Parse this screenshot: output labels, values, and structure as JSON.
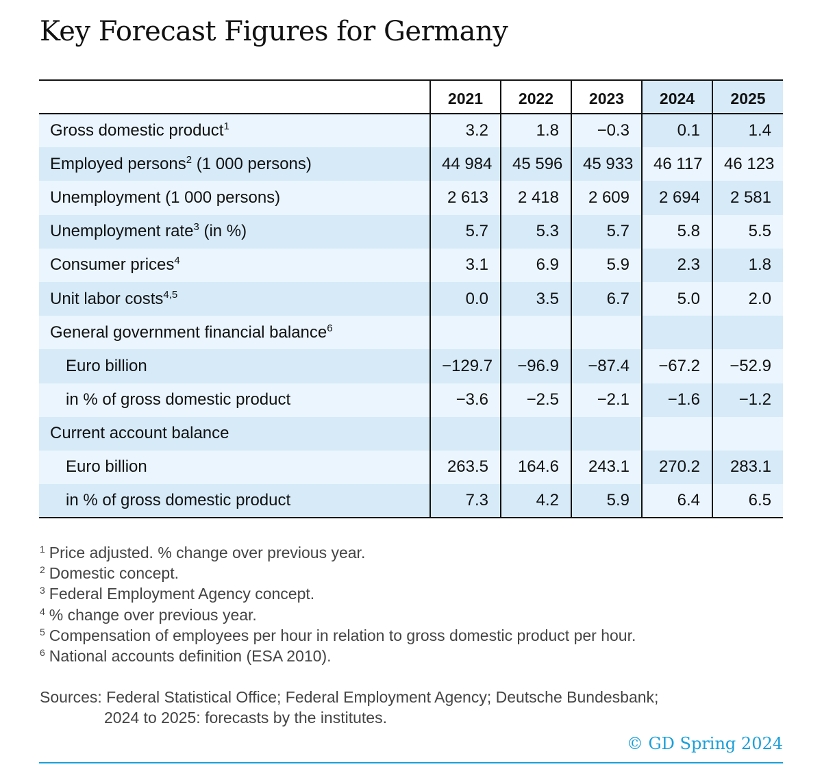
{
  "title": "Key Forecast Figures for Germany",
  "table": {
    "years": [
      "2021",
      "2022",
      "2023",
      "2024",
      "2025"
    ],
    "rows": [
      {
        "label": "Gross domestic product",
        "sup": "1",
        "values": [
          "3.2",
          "1.8",
          "−0.3",
          "0.1",
          "1.4"
        ]
      },
      {
        "label": "Employed persons",
        "sup": "2",
        "suffix": " (1 000 persons)",
        "values": [
          "44 984",
          "45 596",
          "45 933",
          "46 117",
          "46 123"
        ]
      },
      {
        "label": "Unemployment (1 000 persons)",
        "values": [
          "2 613",
          "2 418",
          "2 609",
          "2 694",
          "2 581"
        ]
      },
      {
        "label": "Unemployment rate",
        "sup": "3",
        "suffix": " (in %)",
        "values": [
          "5.7",
          "5.3",
          "5.7",
          "5.8",
          "5.5"
        ]
      },
      {
        "label": "Consumer prices",
        "sup": "4",
        "values": [
          "3.1",
          "6.9",
          "5.9",
          "2.3",
          "1.8"
        ]
      },
      {
        "label": "Unit labor costs",
        "sup": "4,5",
        "values": [
          "0.0",
          "3.5",
          "6.7",
          "5.0",
          "2.0"
        ]
      },
      {
        "label": "General government financial balance",
        "sup": "6",
        "values": [
          "",
          "",
          "",
          "",
          ""
        ]
      },
      {
        "label": "Euro billion",
        "indent": true,
        "values": [
          "−129.7",
          "−96.9",
          "−87.4",
          "−67.2",
          "−52.9"
        ]
      },
      {
        "label": "in % of gross domestic product",
        "indent": true,
        "values": [
          "−3.6",
          "−2.5",
          "−2.1",
          "−1.6",
          "−1.2"
        ]
      },
      {
        "label": "Current account balance",
        "values": [
          "",
          "",
          "",
          "",
          ""
        ]
      },
      {
        "label": "Euro billion",
        "indent": true,
        "values": [
          "263.5",
          "164.6",
          "243.1",
          "270.2",
          "283.1"
        ]
      },
      {
        "label": "in % of gross domestic product",
        "indent": true,
        "values": [
          "7.3",
          "4.2",
          "5.9",
          "6.4",
          "6.5"
        ]
      }
    ]
  },
  "footnotes": [
    {
      "num": "1",
      "text": "Price adjusted. % change over previous year."
    },
    {
      "num": "2",
      "text": "Domestic concept."
    },
    {
      "num": "3",
      "text": "Federal Employment Agency concept."
    },
    {
      "num": "4",
      "text": "% change over previous year."
    },
    {
      "num": "5",
      "text": "Compensation of employees per hour in relation to gross domestic product per hour."
    },
    {
      "num": "6",
      "text": "National accounts definition (ESA 2010)."
    }
  ],
  "sources": {
    "line1": "Sources: Federal Statistical Office; Federal Employment Agency; Deutsche Bundesbank;",
    "line2": "2024 to 2025: forecasts by the institutes."
  },
  "copyright": "© GD Spring 2024",
  "colors": {
    "light_blue": "#eaf5fd",
    "mid_blue": "#d6eaf8",
    "accent": "#1a9fd9"
  }
}
